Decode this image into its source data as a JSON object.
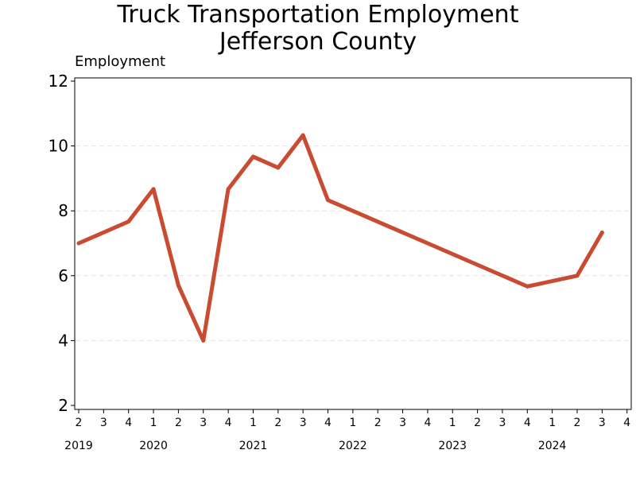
{
  "chart_data": {
    "type": "line",
    "title_lines": [
      "Truck Transportation Employment",
      "Jefferson County"
    ],
    "ylabel": "Employment",
    "xlabel": "",
    "ylim": [
      2,
      12
    ],
    "yticks": [
      2,
      4,
      6,
      8,
      10,
      12
    ],
    "grid": "horizontal dashed",
    "legend": "none",
    "line_color": "#C84B32",
    "quarters": [
      {
        "year": "2019",
        "q": "2"
      },
      {
        "year": "2019",
        "q": "3"
      },
      {
        "year": "2019",
        "q": "4"
      },
      {
        "year": "2020",
        "q": "1"
      },
      {
        "year": "2020",
        "q": "2"
      },
      {
        "year": "2020",
        "q": "3"
      },
      {
        "year": "2020",
        "q": "4"
      },
      {
        "year": "2021",
        "q": "1"
      },
      {
        "year": "2021",
        "q": "2"
      },
      {
        "year": "2021",
        "q": "3"
      },
      {
        "year": "2021",
        "q": "4"
      },
      {
        "year": "2022",
        "q": "1"
      },
      {
        "year": "2022",
        "q": "2"
      },
      {
        "year": "2022",
        "q": "3"
      },
      {
        "year": "2022",
        "q": "4"
      },
      {
        "year": "2023",
        "q": "1"
      },
      {
        "year": "2023",
        "q": "2"
      },
      {
        "year": "2023",
        "q": "3"
      },
      {
        "year": "2023",
        "q": "4"
      },
      {
        "year": "2024",
        "q": "1"
      },
      {
        "year": "2024",
        "q": "2"
      },
      {
        "year": "2024",
        "q": "3"
      },
      {
        "year": "2024",
        "q": "4"
      }
    ],
    "year_labels": [
      {
        "label": "2019",
        "quarter": "2019 Q2"
      },
      {
        "label": "2020",
        "quarter": "2020 Q1"
      },
      {
        "label": "2021",
        "quarter": "2021 Q1"
      },
      {
        "label": "2022",
        "quarter": "2022 Q1"
      },
      {
        "label": "2023",
        "quarter": "2023 Q1"
      },
      {
        "label": "2024",
        "quarter": "2024 Q1"
      }
    ],
    "series": [
      {
        "points": [
          {
            "quarter": "2019 Q2",
            "value": 7.0
          },
          {
            "quarter": "2019 Q4",
            "value": 7.67
          },
          {
            "quarter": "2020 Q1",
            "value": 8.67
          },
          {
            "quarter": "2020 Q2",
            "value": 5.7
          },
          {
            "quarter": "2020 Q3",
            "value": 4.0
          },
          {
            "quarter": "2020 Q4",
            "value": 8.67
          },
          {
            "quarter": "2021 Q1",
            "value": 9.67
          },
          {
            "quarter": "2021 Q2",
            "value": 9.33
          },
          {
            "quarter": "2021 Q3",
            "value": 10.33
          },
          {
            "quarter": "2021 Q4",
            "value": 8.33
          },
          {
            "quarter": "2023 Q4",
            "value": 5.67
          },
          {
            "quarter": "2024 Q2",
            "value": 6.0
          },
          {
            "quarter": "2024 Q3",
            "value": 7.33
          }
        ]
      }
    ]
  }
}
